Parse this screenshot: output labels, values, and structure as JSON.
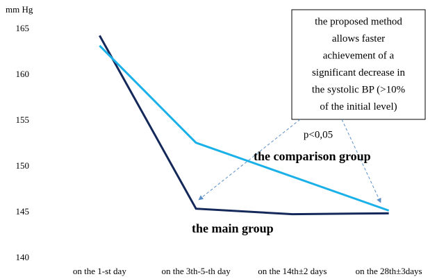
{
  "chart_data": {
    "type": "line",
    "y_label": "mm Hg",
    "categories": [
      "on the 1-st day",
      "on the 3th-5-th day",
      "on the 14th±2 days",
      "on the 28th±3days"
    ],
    "series": [
      {
        "name": "the main group",
        "color": "#14285a",
        "values": [
          164.3,
          145.4,
          144.8,
          144.9
        ]
      },
      {
        "name": "the comparison group",
        "color": "#1ab0e8",
        "values": [
          163.2,
          152.6,
          148.9,
          145.2
        ]
      }
    ],
    "ylim": [
      140,
      165
    ],
    "yticks": [
      140,
      145,
      150,
      155,
      160,
      165
    ],
    "grid": false,
    "annotation": [
      "the proposed method",
      "allows faster",
      "achievement of a",
      "significant decrease in",
      "the systolic BP (>10%",
      "of the initial level)"
    ],
    "p_value": "p<0,05"
  }
}
